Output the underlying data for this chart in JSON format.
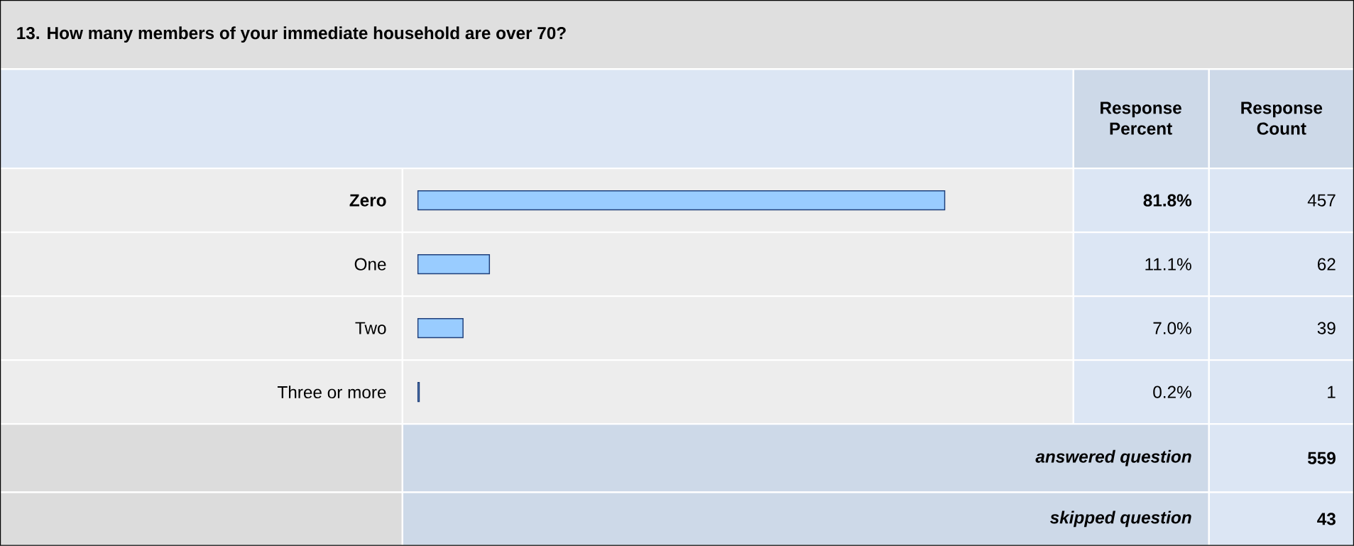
{
  "chart_data": {
    "type": "bar",
    "orientation": "horizontal",
    "title": "13. How many members of your immediate household are over 70?",
    "categories": [
      "Zero",
      "One",
      "Two",
      "Three or more"
    ],
    "tick_labels": "y",
    "series": [
      {
        "color": "#99ccff",
        "values": [
          81.8,
          11.1,
          7.0,
          0.2
        ],
        "value_labels": [
          "81.8%",
          "11.1%",
          "7.0%",
          "0.2%"
        ]
      }
    ],
    "annotations": [
      "Response Percent",
      "Response Count",
      "457",
      "62",
      "39",
      "1",
      "answered question",
      "559",
      "skipped question",
      "43"
    ]
  }
}
